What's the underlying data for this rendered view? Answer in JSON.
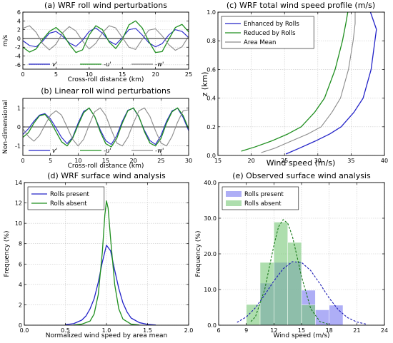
{
  "chart_data": [
    {
      "id": "a",
      "type": "line",
      "title": "(a) WRF roll wind perturbations",
      "xlabel": "Cross-roll distance (km)",
      "ylabel": "m/s",
      "xlim": [
        0,
        25
      ],
      "ylim": [
        -7,
        6
      ],
      "xticks": [
        "0",
        "5",
        "10",
        "15",
        "20",
        "25"
      ],
      "xtick_values": [
        0,
        5,
        10,
        15,
        20,
        25
      ],
      "yticks": [
        "-6",
        "-4",
        "-2",
        "0",
        "2",
        "4",
        "6"
      ],
      "ytick_values": [
        -6,
        -4,
        -2,
        0,
        2,
        4,
        6
      ],
      "grid": true,
      "zero_line": true,
      "legend": "bottom",
      "legend_inline": true,
      "series": [
        {
          "name": "v'",
          "color": "#2323c8",
          "width": 1.1,
          "x": [
            0,
            1,
            2,
            3,
            4,
            5,
            6,
            7,
            8,
            9,
            10,
            11,
            12,
            13,
            14,
            15,
            16,
            17,
            18,
            19,
            20,
            21,
            22,
            23,
            24,
            25
          ],
          "values": [
            -0.5,
            -1.6,
            -1.9,
            -0.6,
            1.2,
            1.6,
            0.5,
            -1.0,
            -1.8,
            -0.4,
            1.6,
            2.4,
            1.2,
            -0.6,
            -1.4,
            0.2,
            2.0,
            2.3,
            0.8,
            -1.0,
            -1.9,
            -1.2,
            0.8,
            2.0,
            1.6,
            0.2
          ]
        },
        {
          "name": "-u'",
          "color": "#1f8f1f",
          "width": 1.3,
          "x": [
            0,
            1,
            2,
            3,
            4,
            5,
            6,
            7,
            8,
            9,
            10,
            11,
            12,
            13,
            14,
            15,
            16,
            17,
            18,
            19,
            20,
            21,
            22,
            23,
            24,
            25
          ],
          "values": [
            -2.0,
            -3.1,
            -2.4,
            -0.2,
            1.6,
            2.5,
            1.1,
            -1.3,
            -3.2,
            -2.6,
            0.8,
            2.9,
            2.0,
            -0.8,
            -2.3,
            -0.2,
            3.1,
            4.0,
            2.4,
            -0.7,
            -3.2,
            -3.0,
            -0.2,
            2.5,
            3.2,
            1.5
          ]
        },
        {
          "name": "-w'",
          "color": "#8a8a8a",
          "width": 1.1,
          "x": [
            0,
            1,
            2,
            3,
            4,
            5,
            6,
            7,
            8,
            9,
            10,
            11,
            12,
            13,
            14,
            15,
            16,
            17,
            18,
            19,
            20,
            21,
            22,
            23,
            24,
            25
          ],
          "values": [
            2.3,
            2.9,
            1.4,
            -1.2,
            -2.6,
            -1.3,
            1.3,
            2.7,
            1.7,
            -0.6,
            -2.4,
            -1.1,
            1.3,
            2.9,
            2.4,
            0.2,
            -2.0,
            -2.5,
            -0.2,
            1.9,
            2.2,
            0.6,
            -1.4,
            -2.7,
            -1.9,
            0.5
          ]
        }
      ]
    },
    {
      "id": "b",
      "type": "line",
      "title": "(b) Linear roll wind perturbations",
      "xlabel": "Cross-roll distance (km)",
      "ylabel": "Non-dimensional",
      "xlim": [
        0,
        30
      ],
      "ylim": [
        -1.5,
        1.5
      ],
      "xticks": [
        "0",
        "5",
        "10",
        "15",
        "20",
        "25",
        "30"
      ],
      "xtick_values": [
        0,
        5,
        10,
        15,
        20,
        25,
        30
      ],
      "yticks": [
        "-1",
        "0",
        "1"
      ],
      "ytick_values": [
        -1,
        0,
        1
      ],
      "grid": true,
      "zero_line": true,
      "legend": "bottom",
      "legend_inline": true,
      "series": [
        {
          "name": "v'",
          "color": "#2323c8",
          "width": 1.1,
          "x": [
            0,
            1,
            2,
            3,
            4,
            5,
            6,
            7,
            8,
            9,
            10,
            11,
            12,
            13,
            14,
            15,
            16,
            17,
            18,
            19,
            20,
            21,
            22,
            23,
            24,
            25,
            26,
            27,
            28,
            29,
            30
          ],
          "values": [
            -0.4,
            -0.1,
            0.3,
            0.62,
            0.7,
            0.42,
            -0.05,
            -0.55,
            -0.88,
            -0.55,
            0.2,
            0.82,
            0.98,
            0.55,
            -0.15,
            -0.72,
            -0.92,
            -0.45,
            0.3,
            0.88,
            0.98,
            0.52,
            -0.18,
            -0.72,
            -0.92,
            -0.45,
            0.3,
            0.85,
            0.98,
            0.5,
            -0.2
          ]
        },
        {
          "name": "-u'",
          "color": "#1f8f1f",
          "width": 1.3,
          "x": [
            0,
            1,
            2,
            3,
            4,
            5,
            6,
            7,
            8,
            9,
            10,
            11,
            12,
            13,
            14,
            15,
            16,
            17,
            18,
            19,
            20,
            21,
            22,
            23,
            24,
            25,
            26,
            27,
            28,
            29,
            30
          ],
          "values": [
            -0.55,
            -0.3,
            0.2,
            0.58,
            0.66,
            0.3,
            -0.25,
            -0.78,
            -1.0,
            -0.6,
            0.1,
            0.75,
            1.0,
            0.55,
            -0.25,
            -0.88,
            -1.05,
            -0.6,
            0.2,
            0.85,
            1.0,
            0.55,
            -0.25,
            -0.85,
            -1.0,
            -0.6,
            0.2,
            0.8,
            1.0,
            0.6,
            -0.1
          ]
        },
        {
          "name": "-w'",
          "color": "#8a8a8a",
          "width": 1.1,
          "x": [
            0,
            1,
            2,
            3,
            4,
            5,
            6,
            7,
            8,
            9,
            10,
            11,
            12,
            13,
            14,
            15,
            16,
            17,
            18,
            19,
            20,
            21,
            22,
            23,
            24,
            25,
            26,
            27,
            28,
            29,
            30
          ],
          "values": [
            -0.1,
            -0.5,
            -0.75,
            -0.45,
            0.1,
            0.62,
            0.85,
            0.62,
            0.0,
            -0.65,
            -1.0,
            -0.65,
            0.1,
            0.8,
            1.0,
            0.6,
            -0.15,
            -0.85,
            -1.0,
            -0.55,
            0.2,
            0.85,
            1.0,
            0.55,
            -0.2,
            -0.85,
            -1.0,
            -0.5,
            0.25,
            0.85,
            0.9
          ]
        }
      ]
    },
    {
      "id": "c",
      "type": "line",
      "title": "(c) WRF total wind speed profile (m/s)",
      "xlabel": "Wind speed (m/s)",
      "ylabel": "z (km)",
      "xlim": [
        15,
        40
      ],
      "ylim": [
        0,
        1.0
      ],
      "xticks": [
        "15",
        "20",
        "25",
        "30",
        "35",
        "40"
      ],
      "xtick_values": [
        15,
        20,
        25,
        30,
        35,
        40
      ],
      "yticks": [
        "0.0",
        "0.2",
        "0.4",
        "0.6",
        "0.8",
        "1.0"
      ],
      "ytick_values": [
        0,
        0.2,
        0.4,
        0.6,
        0.8,
        1.0
      ],
      "grid": true,
      "legend": "top-left",
      "series": [
        {
          "name": "Enhanced by Rolls",
          "color": "#2323c8",
          "width": 1.3,
          "x": [
            25.2,
            27.2,
            29.6,
            31.8,
            33.5,
            35.4,
            36.8,
            38.0,
            38.8,
            37.9
          ],
          "values": [
            0.01,
            0.05,
            0.1,
            0.15,
            0.2,
            0.3,
            0.4,
            0.6,
            0.88,
            1.0
          ]
        },
        {
          "name": "Reduced by Rolls",
          "color": "#1f8f1f",
          "width": 1.3,
          "x": [
            18.5,
            20.6,
            23.0,
            25.5,
            27.5,
            29.5,
            31.0,
            32.6,
            33.7,
            34.2,
            34.5
          ],
          "values": [
            0.03,
            0.06,
            0.1,
            0.15,
            0.2,
            0.3,
            0.4,
            0.6,
            0.8,
            0.92,
            1.0
          ]
        },
        {
          "name": "Area Mean",
          "color": "#8a8a8a",
          "width": 1.1,
          "x": [
            21.5,
            23.5,
            26.0,
            28.5,
            30.5,
            32.1,
            33.4,
            34.6,
            35.3,
            35.6,
            35.6
          ],
          "values": [
            0.02,
            0.05,
            0.1,
            0.15,
            0.2,
            0.3,
            0.4,
            0.6,
            0.8,
            0.92,
            1.0
          ]
        }
      ]
    },
    {
      "id": "d",
      "type": "line",
      "title": "(d) WRF surface wind analysis",
      "xlabel": "Normalized wind speed by area mean",
      "ylabel": "Frequency (%)",
      "xlim": [
        0.0,
        2.0
      ],
      "ylim": [
        0,
        14
      ],
      "xticks": [
        "0.0",
        "0.5",
        "1.0",
        "1.5",
        "2.0"
      ],
      "xtick_values": [
        0,
        0.5,
        1.0,
        1.5,
        2.0
      ],
      "yticks": [
        "0",
        "2",
        "4",
        "6",
        "8",
        "10",
        "12",
        "14"
      ],
      "ytick_values": [
        0,
        2,
        4,
        6,
        8,
        10,
        12,
        14
      ],
      "grid": true,
      "legend": "top-left",
      "series": [
        {
          "name": "Rolls present",
          "color": "#2323c8",
          "width": 1.3,
          "x": [
            0.5,
            0.6,
            0.7,
            0.75,
            0.8,
            0.85,
            0.9,
            0.95,
            1.0,
            1.05,
            1.1,
            1.15,
            1.2,
            1.25,
            1.3,
            1.4,
            1.5,
            1.6
          ],
          "values": [
            0.05,
            0.15,
            0.5,
            0.9,
            1.6,
            2.6,
            4.2,
            6.2,
            7.85,
            7.3,
            5.4,
            3.6,
            2.2,
            1.3,
            0.7,
            0.25,
            0.08,
            0.02
          ]
        },
        {
          "name": "Rolls absent",
          "color": "#1f8f1f",
          "width": 1.3,
          "x": [
            0.6,
            0.7,
            0.8,
            0.85,
            0.9,
            0.95,
            0.98,
            1.0,
            1.02,
            1.05,
            1.1,
            1.15,
            1.2,
            1.3,
            1.4
          ],
          "values": [
            0.02,
            0.1,
            0.4,
            1.1,
            3.0,
            7.2,
            10.8,
            12.2,
            11.5,
            8.5,
            4.0,
            1.6,
            0.6,
            0.1,
            0.02
          ]
        }
      ]
    },
    {
      "id": "e",
      "type": "bar",
      "title": "(e) Observed surface wind analysis",
      "xlabel": "Wind speed (m/s)",
      "ylabel": "Frequency (%)",
      "xlim": [
        6,
        24
      ],
      "ylim": [
        0,
        40
      ],
      "xticks": [
        "6",
        "9",
        "12",
        "15",
        "18",
        "21",
        "24"
      ],
      "xtick_values": [
        6,
        9,
        12,
        15,
        18,
        21,
        24
      ],
      "yticks": [
        "0.0",
        "10.0",
        "20.0",
        "30.0",
        "40.0"
      ],
      "ytick_values": [
        0,
        10,
        20,
        30,
        40
      ],
      "grid": true,
      "legend": "top-left",
      "bin_edges": [
        9.0,
        10.5,
        12.0,
        13.5,
        15.0,
        16.5,
        18.0,
        19.5
      ],
      "series": [
        {
          "name": "Rolls present",
          "color": "#7878f0",
          "values": [
            0,
            11.8,
            17.6,
            17.6,
            9.8,
            4.3,
            5.6
          ],
          "fit_x": [
            8,
            9,
            10,
            11,
            12,
            13,
            14,
            15,
            16,
            17,
            18,
            19,
            20,
            21,
            22
          ],
          "fit": [
            0.8,
            2.3,
            4.9,
            8.5,
            12.4,
            15.8,
            17.8,
            17.6,
            15.3,
            11.6,
            7.6,
            4.3,
            2.1,
            0.9,
            0.3
          ]
        },
        {
          "name": "Rolls absent",
          "color": "#78c878",
          "values": [
            5.8,
            17.6,
            28.9,
            23.2,
            5.7,
            0,
            0
          ],
          "fit_x": [
            9.5,
            10,
            11,
            12,
            12.5,
            13,
            13.5,
            14,
            14.5,
            15,
            16,
            17,
            18
          ],
          "fit": [
            1.0,
            2.4,
            10.0,
            22.4,
            27.6,
            29.6,
            28.6,
            25.0,
            19.4,
            13.6,
            4.6,
            1.0,
            0.2
          ]
        }
      ]
    }
  ]
}
